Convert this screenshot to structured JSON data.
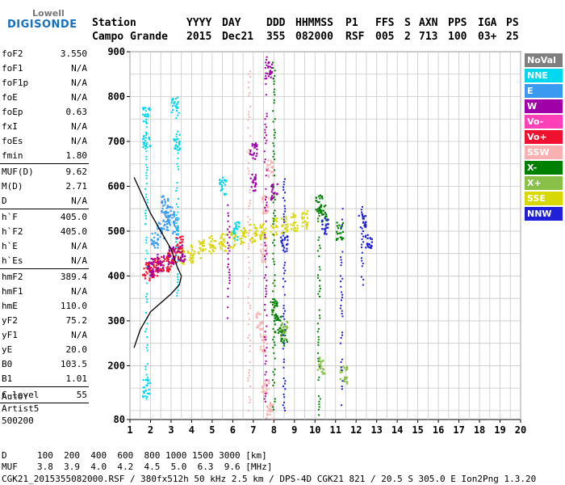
{
  "logo": {
    "top": "Lowell",
    "bottom": "DIGISONDE"
  },
  "header": {
    "row1": [
      "Station",
      "YYYY",
      "DAY",
      "DDD",
      "HHMMSS",
      "P1",
      "FFS",
      "S",
      "AXN",
      "PPS",
      "IGA",
      "PS"
    ],
    "row2": [
      "Campo Grande",
      "2015",
      "Dec21",
      "355",
      "082000",
      "RSF",
      "005",
      "2",
      "713",
      "100",
      "03+",
      "25"
    ]
  },
  "params": {
    "group1": [
      {
        "name": "foF2",
        "value": "3.550"
      },
      {
        "name": "foF1",
        "value": "N/A"
      },
      {
        "name": "foF1p",
        "value": "N/A"
      },
      {
        "name": "foE",
        "value": "N/A"
      },
      {
        "name": "foEp",
        "value": "0.63"
      },
      {
        "name": "fxI",
        "value": "N/A"
      },
      {
        "name": "foEs",
        "value": "N/A"
      },
      {
        "name": "fmin",
        "value": "1.80"
      }
    ],
    "group2": [
      {
        "name": "MUF(D)",
        "value": "9.62"
      },
      {
        "name": "M(D)",
        "value": "2.71"
      },
      {
        "name": "D",
        "value": "N/A"
      }
    ],
    "group3": [
      {
        "name": "h`F",
        "value": "405.0"
      },
      {
        "name": "h`F2",
        "value": "405.0"
      },
      {
        "name": "h`E",
        "value": "N/A"
      },
      {
        "name": "h`Es",
        "value": "N/A"
      }
    ],
    "group4": [
      {
        "name": "hmF2",
        "value": "389.4"
      },
      {
        "name": "hmF1",
        "value": "N/A"
      },
      {
        "name": "hmE",
        "value": "110.0"
      },
      {
        "name": "yF2",
        "value": "75.2"
      },
      {
        "name": "yF1",
        "value": "N/A"
      },
      {
        "name": "yE",
        "value": "20.0"
      },
      {
        "name": "B0",
        "value": "103.5"
      },
      {
        "name": "B1",
        "value": "1.01"
      }
    ],
    "group5": [
      {
        "name": "C-level",
        "value": "55"
      }
    ]
  },
  "autoscale": [
    "Auto:",
    "Artist5",
    "500200"
  ],
  "bottom": {
    "d_label": "D",
    "d_values": "100  200  400  600  800 1000 1500 3000 [km]",
    "muf_label": "MUF",
    "muf_values": "3.8  3.9  4.0  4.2  4.5  5.0  6.3  9.6 [MHz]",
    "footer": "CGK21_2015355082000.RSF / 380fx512h 50 kHz 2.5 km / DPS-4D CGK21 821 / 20.5 S 305.0 E Ion2Png 1.3.20"
  },
  "legend": [
    {
      "label": "NoVal",
      "color": "#7f7f7f"
    },
    {
      "label": "NNE",
      "color": "#00d8f0"
    },
    {
      "label": "E",
      "color": "#3a9af0"
    },
    {
      "label": "W",
      "color": "#a000a8"
    },
    {
      "label": "Vo-",
      "color": "#ff40b8"
    },
    {
      "label": "Vo+",
      "color": "#f01030"
    },
    {
      "label": "SSW",
      "color": "#f8b0b0"
    },
    {
      "label": "X-",
      "color": "#008000"
    },
    {
      "label": "X+",
      "color": "#88c048"
    },
    {
      "label": "SSE",
      "color": "#d8d800"
    },
    {
      "label": "NNW",
      "color": "#2020d8"
    }
  ],
  "chart_data": {
    "type": "scatter",
    "xlabel": "",
    "ylabel": "",
    "xlim": [
      1,
      20
    ],
    "ylim": [
      80,
      900
    ],
    "x_ticks": [
      1,
      2,
      3,
      4,
      5,
      6,
      7,
      8,
      9,
      10,
      11,
      12,
      13,
      14,
      15,
      16,
      17,
      18,
      19,
      20
    ],
    "y_ticks": [
      80,
      200,
      300,
      400,
      500,
      600,
      700,
      800,
      900
    ],
    "grid": true,
    "legend_placement": "right",
    "series": [
      {
        "name": "SSE",
        "points": [
          [
            3.5,
            440
          ],
          [
            4,
            450
          ],
          [
            4.5,
            460
          ],
          [
            5,
            470
          ],
          [
            5.5,
            475
          ],
          [
            6,
            480
          ],
          [
            6.5,
            490
          ],
          [
            7,
            495
          ],
          [
            7.5,
            500
          ],
          [
            8,
            510
          ],
          [
            8.5,
            515
          ],
          [
            9,
            520
          ],
          [
            9.5,
            525
          ]
        ]
      },
      {
        "name": "Vo+",
        "points": [
          [
            1.8,
            410
          ],
          [
            2,
            415
          ],
          [
            2.2,
            420
          ],
          [
            2.5,
            425
          ],
          [
            2.8,
            430
          ],
          [
            3,
            440
          ],
          [
            3.2,
            450
          ],
          [
            3.4,
            470
          ]
        ]
      },
      {
        "name": "E",
        "points": [
          [
            2.5,
            500
          ],
          [
            2.8,
            520
          ],
          [
            3,
            540
          ],
          [
            3.2,
            510
          ],
          [
            2.2,
            480
          ],
          [
            2.7,
            560
          ]
        ]
      },
      {
        "name": "W",
        "points": [
          [
            2,
            420
          ],
          [
            2.5,
            430
          ],
          [
            3,
            445
          ],
          [
            3.5,
            450
          ],
          [
            7,
            610
          ],
          [
            7,
            680
          ],
          [
            7.8,
            860
          ],
          [
            8,
            590
          ]
        ]
      },
      {
        "name": "SSW",
        "points": [
          [
            7.3,
            300
          ],
          [
            7.5,
            450
          ],
          [
            7.6,
            560
          ],
          [
            7.8,
            640
          ],
          [
            7.5,
            250
          ],
          [
            7.6,
            150
          ],
          [
            7.8,
            100
          ]
        ]
      },
      {
        "name": "NNE",
        "points": [
          [
            1.8,
            760
          ],
          [
            1.8,
            700
          ],
          [
            3.2,
            780
          ],
          [
            3.3,
            700
          ],
          [
            5.5,
            600
          ],
          [
            6.2,
            500
          ],
          [
            1.8,
            150
          ]
        ]
      },
      {
        "name": "X-",
        "points": [
          [
            10.2,
            560
          ],
          [
            10.4,
            540
          ],
          [
            11.2,
            500
          ],
          [
            8,
            330
          ],
          [
            8.2,
            290
          ],
          [
            8.5,
            260
          ]
        ]
      },
      {
        "name": "NNW",
        "points": [
          [
            12.3,
            520
          ],
          [
            12.6,
            480
          ],
          [
            10.5,
            510
          ],
          [
            8.5,
            470
          ]
        ]
      },
      {
        "name": "X+",
        "points": [
          [
            8.5,
            280
          ],
          [
            10.3,
            200
          ],
          [
            11.4,
            180
          ]
        ]
      }
    ],
    "profile_curve": [
      [
        1.2,
        620
      ],
      [
        1.5,
        590
      ],
      [
        2,
        540
      ],
      [
        2.5,
        500
      ],
      [
        3,
        460
      ],
      [
        3.3,
        420
      ],
      [
        3.5,
        400
      ],
      [
        3.4,
        380
      ],
      [
        3.0,
        360
      ],
      [
        2.5,
        340
      ],
      [
        2.0,
        320
      ],
      [
        1.5,
        280
      ],
      [
        1.2,
        240
      ]
    ]
  }
}
